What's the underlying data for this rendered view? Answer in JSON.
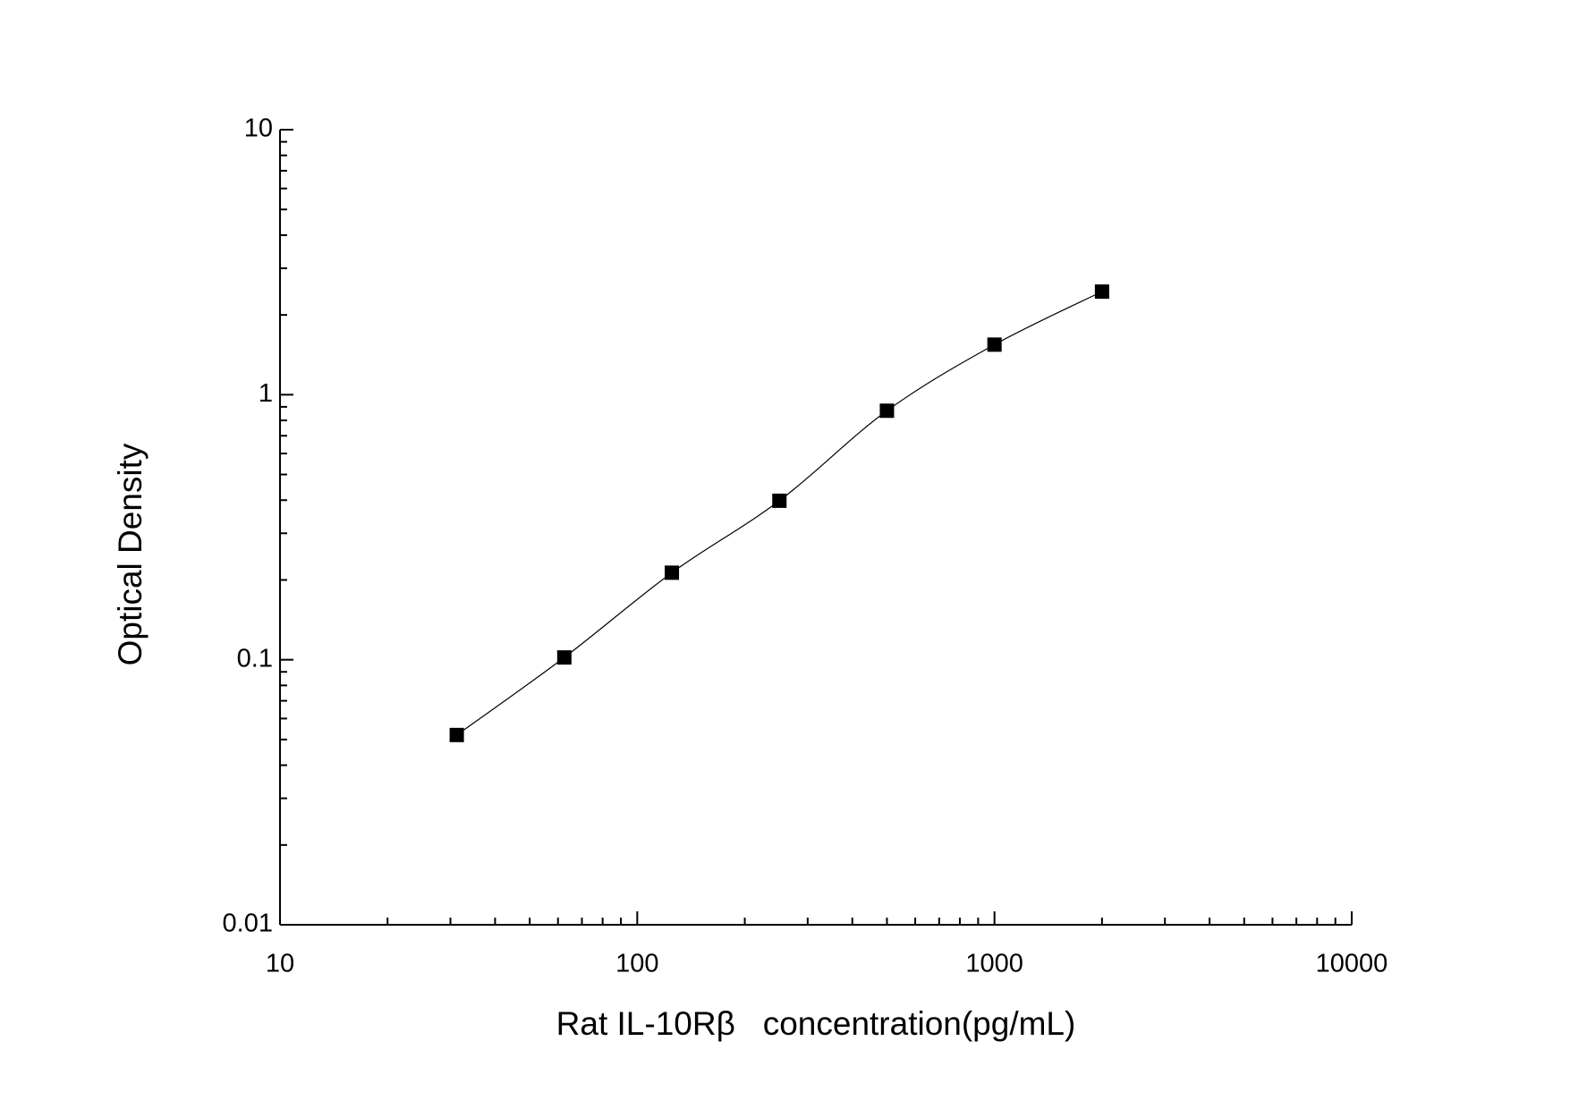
{
  "chart_data": {
    "type": "scatter",
    "xlabel": "Rat IL-10Rβ   concentration(pg/mL)",
    "ylabel": "Optical Density",
    "x": [
      31.25,
      62.5,
      125,
      250,
      500,
      1000,
      2000
    ],
    "values": [
      0.052,
      0.102,
      0.213,
      0.398,
      0.87,
      1.545,
      2.45
    ],
    "color": "#000000",
    "curve": true,
    "xscale": "log",
    "yscale": "log",
    "xlim": [
      10,
      10000
    ],
    "ylim": [
      0.01,
      10
    ],
    "xticks": [
      10,
      100,
      1000,
      10000
    ],
    "yticks": [
      0.01,
      0.1,
      1,
      10
    ]
  }
}
